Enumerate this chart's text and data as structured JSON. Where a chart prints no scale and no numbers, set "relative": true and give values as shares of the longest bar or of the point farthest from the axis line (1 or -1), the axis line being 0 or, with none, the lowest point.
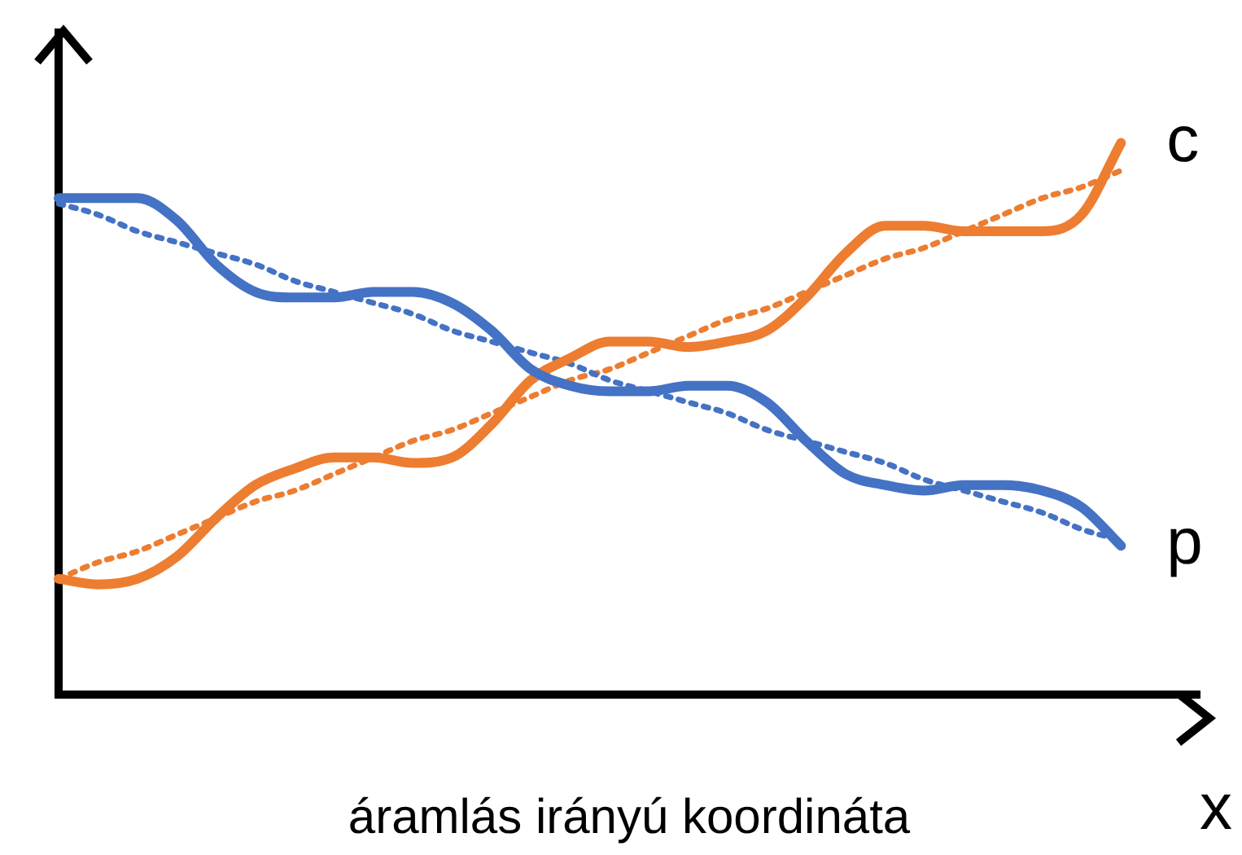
{
  "chart_data": {
    "type": "line",
    "relative": true,
    "xlabel": "áramlás irányú koordináta",
    "annotations": [
      "x"
    ],
    "grid": false,
    "legend": false,
    "marker": "none",
    "categories": [
      null,
      null,
      null,
      null,
      null,
      null,
      null,
      null,
      null,
      null,
      null,
      null,
      null,
      null,
      null,
      null,
      null,
      null,
      null,
      null,
      null,
      null,
      null,
      null,
      null,
      null,
      null,
      null,
      null,
      null
    ],
    "series": [
      {
        "name": "p",
        "color": "#4472c4",
        "line_style": "solid",
        "values": [
          0.9,
          0.9,
          0.9,
          0.86,
          0.78,
          0.73,
          0.72,
          0.72,
          0.73,
          0.73,
          0.71,
          0.66,
          0.59,
          0.56,
          0.55,
          0.55,
          0.56,
          0.56,
          0.53,
          0.46,
          0.4,
          0.38,
          0.37,
          0.38,
          0.38,
          0.37,
          0.34,
          0.27,
          null,
          null
        ]
      },
      {
        "name": "c",
        "color": "#ed7d31",
        "line_style": "solid",
        "values": [
          0.21,
          0.2,
          0.21,
          0.25,
          0.32,
          0.38,
          0.41,
          0.43,
          0.43,
          0.42,
          0.43,
          0.49,
          0.57,
          0.61,
          0.64,
          0.64,
          0.63,
          0.64,
          0.66,
          0.72,
          0.8,
          0.85,
          0.85,
          0.84,
          0.84,
          0.84,
          0.87,
          1.0,
          null,
          null
        ]
      },
      {
        "color": "#4472c4",
        "line_style": "dotted",
        "values": [
          0.89,
          0.87,
          0.84,
          0.82,
          0.8,
          0.78,
          0.75,
          0.73,
          0.71,
          0.69,
          0.66,
          0.64,
          0.62,
          0.6,
          0.57,
          0.55,
          0.53,
          0.51,
          0.48,
          0.46,
          0.44,
          0.42,
          0.39,
          0.37,
          0.35,
          0.33,
          0.3,
          0.28,
          null,
          null
        ]
      },
      {
        "color": "#ed7d31",
        "line_style": "dotted",
        "values": [
          0.21,
          0.24,
          0.26,
          0.29,
          0.32,
          0.35,
          0.37,
          0.4,
          0.43,
          0.46,
          0.48,
          0.51,
          0.54,
          0.57,
          0.59,
          0.62,
          0.65,
          0.68,
          0.7,
          0.73,
          0.76,
          0.79,
          0.81,
          0.84,
          0.87,
          0.9,
          0.92,
          0.95,
          null,
          null
        ]
      }
    ]
  }
}
